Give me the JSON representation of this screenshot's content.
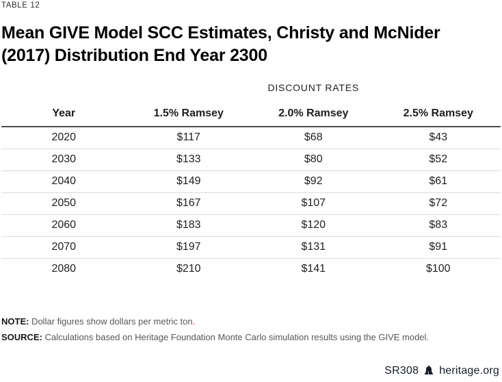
{
  "page": {
    "table_label": "TABLE 12",
    "title": "Mean GIVE Model SCC Estimates, Christy and McNider (2017) Distribution End Year 2300"
  },
  "table": {
    "group_header": "DISCOUNT RATES",
    "columns": [
      "Year",
      "1.5% Ramsey",
      "2.0% Ramsey",
      "2.5% Ramsey"
    ],
    "rows": [
      [
        "2020",
        "$117",
        "$68",
        "$43"
      ],
      [
        "2030",
        "$133",
        "$80",
        "$52"
      ],
      [
        "2040",
        "$149",
        "$92",
        "$61"
      ],
      [
        "2050",
        "$167",
        "$107",
        "$72"
      ],
      [
        "2060",
        "$183",
        "$120",
        "$83"
      ],
      [
        "2070",
        "$197",
        "$131",
        "$91"
      ],
      [
        "2080",
        "$210",
        "$141",
        "$100"
      ]
    ]
  },
  "chart_data": {
    "type": "table",
    "title": "Mean GIVE Model SCC Estimates, Christy and McNider (2017) Distribution End Year 2300",
    "group_header": "DISCOUNT RATES",
    "columns": [
      "Year",
      "1.5% Ramsey",
      "2.0% Ramsey",
      "2.5% Ramsey"
    ],
    "categories": [
      "2020",
      "2030",
      "2040",
      "2050",
      "2060",
      "2070",
      "2080"
    ],
    "series": [
      {
        "name": "1.5% Ramsey",
        "values": [
          117,
          133,
          149,
          167,
          183,
          197,
          210
        ]
      },
      {
        "name": "2.0% Ramsey",
        "values": [
          68,
          80,
          92,
          107,
          120,
          131,
          141
        ]
      },
      {
        "name": "2.5% Ramsey",
        "values": [
          43,
          52,
          61,
          72,
          83,
          91,
          100
        ]
      }
    ],
    "units": "dollars per metric ton"
  },
  "note": {
    "label": "NOTE:",
    "text": " Dollar figures show dollars per metric ton",
    "period": "."
  },
  "source": {
    "label": "SOURCE:",
    "text": " Calculations based on Heritage Foundation Monte Carlo simulation results using the GIVE model."
  },
  "footer": {
    "report_id": "SR308",
    "site": "heritage.org",
    "logo_icon": "liberty-bell-icon"
  },
  "colors": {
    "accent_pink": "#ec008c",
    "text_dark": "#1e1e1e",
    "note_gray": "#55565a",
    "row_border": "#dcdcdc",
    "header_border": "#4d4d4d"
  }
}
